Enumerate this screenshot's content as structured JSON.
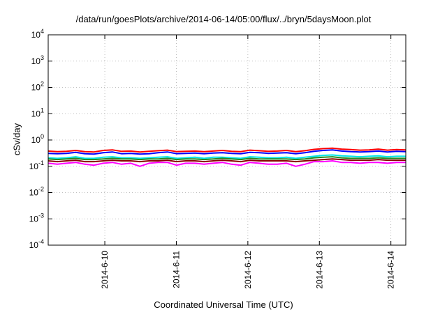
{
  "title": "/data/run/goesPlots/archive/2014-06-14/05:00/flux/../bryn/5daysMoon.plot",
  "chart_data": {
    "type": "line",
    "title": "/data/run/goesPlots/archive/2014-06-14/05:00/flux/../bryn/5daysMoon.plot",
    "xlabel": "Coordinated Universal Time (UTC)",
    "ylabel": "cSv/day",
    "yscale": "log",
    "ylim": [
      0.0001,
      10000
    ],
    "xlim": [
      "2014-06-09 05:00",
      "2014-06-14 05:00"
    ],
    "grid": true,
    "yticks": [
      {
        "value": 0.0001,
        "base": "10",
        "exp": "-4"
      },
      {
        "value": 0.001,
        "base": "10",
        "exp": "-3"
      },
      {
        "value": 0.01,
        "base": "10",
        "exp": "-2"
      },
      {
        "value": 0.1,
        "base": "10",
        "exp": "-1"
      },
      {
        "value": 1,
        "base": "10",
        "exp": "0"
      },
      {
        "value": 10,
        "base": "10",
        "exp": "1"
      },
      {
        "value": 100,
        "base": "10",
        "exp": "2"
      },
      {
        "value": 1000,
        "base": "10",
        "exp": "3"
      },
      {
        "value": 10000,
        "base": "10",
        "exp": "4"
      }
    ],
    "xticks": [
      {
        "value": "2014-06-10 00:00",
        "label": "2014-6-10"
      },
      {
        "value": "2014-06-11 00:00",
        "label": "2014-6-11"
      },
      {
        "value": "2014-06-12 00:00",
        "label": "2014-6-12"
      },
      {
        "value": "2014-06-13 00:00",
        "label": "2014-6-13"
      },
      {
        "value": "2014-06-14 00:00",
        "label": "2014-6-14"
      }
    ],
    "series": [
      {
        "color": "#ff0000",
        "values": [
          0.38,
          0.36,
          0.37,
          0.4,
          0.36,
          0.35,
          0.4,
          0.42,
          0.37,
          0.38,
          0.35,
          0.37,
          0.39,
          0.41,
          0.36,
          0.37,
          0.38,
          0.36,
          0.38,
          0.4,
          0.37,
          0.36,
          0.41,
          0.39,
          0.37,
          0.38,
          0.4,
          0.36,
          0.39,
          0.44,
          0.47,
          0.49,
          0.45,
          0.43,
          0.41,
          0.42,
          0.45,
          0.41,
          0.43,
          0.42
        ]
      },
      {
        "color": "#0000ff",
        "values": [
          0.31,
          0.3,
          0.31,
          0.34,
          0.3,
          0.29,
          0.33,
          0.35,
          0.3,
          0.31,
          0.29,
          0.3,
          0.33,
          0.35,
          0.3,
          0.31,
          0.32,
          0.3,
          0.32,
          0.33,
          0.31,
          0.3,
          0.34,
          0.33,
          0.31,
          0.32,
          0.33,
          0.3,
          0.33,
          0.37,
          0.4,
          0.42,
          0.38,
          0.36,
          0.35,
          0.36,
          0.38,
          0.35,
          0.37,
          0.36
        ]
      },
      {
        "color": "#00e5e5",
        "values": [
          0.21,
          0.2,
          0.21,
          0.23,
          0.2,
          0.2,
          0.22,
          0.23,
          0.21,
          0.21,
          0.2,
          0.21,
          0.22,
          0.23,
          0.2,
          0.21,
          0.22,
          0.2,
          0.22,
          0.22,
          0.21,
          0.2,
          0.23,
          0.22,
          0.21,
          0.21,
          0.22,
          0.2,
          0.22,
          0.24,
          0.26,
          0.27,
          0.25,
          0.24,
          0.23,
          0.24,
          0.25,
          0.23,
          0.24,
          0.24
        ]
      },
      {
        "color": "#228b22",
        "values": [
          0.19,
          0.18,
          0.19,
          0.2,
          0.18,
          0.18,
          0.19,
          0.2,
          0.19,
          0.19,
          0.18,
          0.19,
          0.19,
          0.2,
          0.18,
          0.19,
          0.19,
          0.18,
          0.19,
          0.2,
          0.19,
          0.18,
          0.2,
          0.19,
          0.19,
          0.19,
          0.19,
          0.18,
          0.19,
          0.21,
          0.22,
          0.23,
          0.21,
          0.2,
          0.2,
          0.2,
          0.21,
          0.2,
          0.2,
          0.2
        ]
      },
      {
        "color": "#8b0000",
        "values": [
          0.16,
          0.15,
          0.16,
          0.17,
          0.15,
          0.15,
          0.16,
          0.17,
          0.16,
          0.16,
          0.15,
          0.16,
          0.16,
          0.17,
          0.15,
          0.16,
          0.16,
          0.15,
          0.16,
          0.17,
          0.16,
          0.15,
          0.17,
          0.16,
          0.16,
          0.16,
          0.16,
          0.15,
          0.16,
          0.17,
          0.18,
          0.19,
          0.18,
          0.17,
          0.17,
          0.17,
          0.18,
          0.17,
          0.17,
          0.17
        ]
      },
      {
        "color": "#ff00ff",
        "values": [
          0.13,
          0.12,
          0.13,
          0.14,
          0.12,
          0.11,
          0.13,
          0.14,
          0.12,
          0.13,
          0.1,
          0.13,
          0.14,
          0.14,
          0.11,
          0.13,
          0.13,
          0.12,
          0.13,
          0.14,
          0.12,
          0.11,
          0.14,
          0.13,
          0.12,
          0.12,
          0.13,
          0.1,
          0.12,
          0.15,
          0.15,
          0.16,
          0.14,
          0.14,
          0.13,
          0.14,
          0.14,
          0.13,
          0.14,
          0.14
        ]
      }
    ]
  }
}
